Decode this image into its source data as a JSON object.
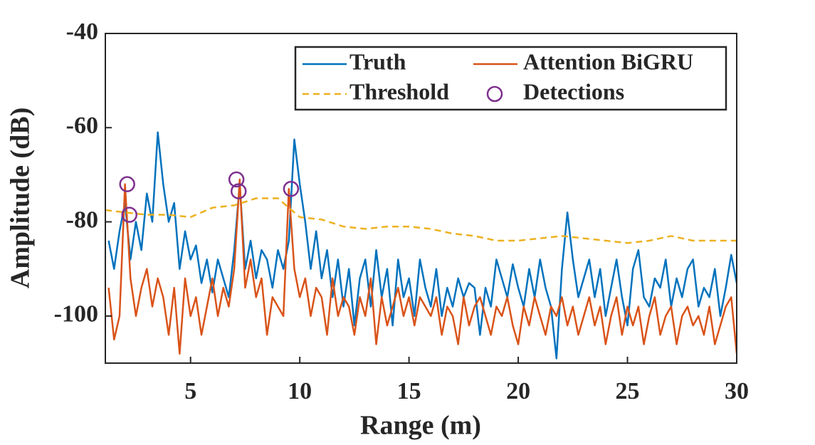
{
  "chart_data": {
    "type": "line",
    "xlabel": "Range (m)",
    "ylabel": "Amplitude (dB)",
    "xlim": [
      1.1,
      30
    ],
    "ylim": [
      -110,
      -40
    ],
    "xticks": [
      5,
      10,
      15,
      20,
      25,
      30
    ],
    "yticks": [
      -40,
      -60,
      -80,
      -100
    ],
    "legend": "upper right",
    "x": [
      1.25,
      1.5,
      1.75,
      2,
      2.25,
      2.5,
      2.75,
      3,
      3.25,
      3.5,
      3.75,
      4,
      4.25,
      4.5,
      4.75,
      5,
      5.25,
      5.5,
      5.75,
      6,
      6.25,
      6.5,
      6.75,
      7,
      7.25,
      7.5,
      7.75,
      8,
      8.25,
      8.5,
      8.75,
      9,
      9.25,
      9.5,
      9.75,
      10,
      10.25,
      10.5,
      10.75,
      11,
      11.25,
      11.5,
      11.75,
      12,
      12.25,
      12.5,
      12.75,
      13,
      13.25,
      13.5,
      13.75,
      14,
      14.25,
      14.5,
      14.75,
      15,
      15.25,
      15.5,
      15.75,
      16,
      16.25,
      16.5,
      16.75,
      17,
      17.25,
      17.5,
      17.75,
      18,
      18.25,
      18.5,
      18.75,
      19,
      19.25,
      19.5,
      19.75,
      20,
      20.25,
      20.5,
      20.75,
      21,
      21.25,
      21.5,
      21.75,
      22,
      22.25,
      22.5,
      22.75,
      23,
      23.25,
      23.5,
      23.75,
      24,
      24.25,
      24.5,
      24.75,
      25,
      25.25,
      25.5,
      25.75,
      26,
      26.25,
      26.5,
      26.75,
      27,
      27.25,
      27.5,
      27.75,
      28,
      28.25,
      28.5,
      28.75,
      29,
      29.25,
      29.5,
      29.75,
      30
    ],
    "series": [
      {
        "name": "Truth",
        "color": "#0072bd",
        "style": "solid",
        "values": [
          -84,
          -90,
          -82,
          -76,
          -88,
          -80,
          -86,
          -74,
          -80,
          -61,
          -72,
          -80,
          -76,
          -90,
          -82,
          -88,
          -85,
          -93,
          -88,
          -95,
          -88,
          -92,
          -96,
          -86,
          -72,
          -90,
          -84,
          -92,
          -86,
          -88,
          -94,
          -86,
          -90,
          -84,
          -62.5,
          -72,
          -80,
          -90,
          -82,
          -92,
          -86,
          -96,
          -88,
          -98,
          -90,
          -102,
          -92,
          -88,
          -98,
          -86,
          -96,
          -90,
          -102,
          -88,
          -96,
          -92,
          -100,
          -88,
          -94,
          -98,
          -90,
          -100,
          -94,
          -98,
          -92,
          -96,
          -93,
          -94,
          -104,
          -94,
          -98,
          -88,
          -92,
          -96,
          -89,
          -94,
          -98,
          -90,
          -96,
          -88,
          -94,
          -98,
          -109,
          -90,
          -78,
          -88,
          -96,
          -92,
          -88,
          -96,
          -90,
          -100,
          -94,
          -88,
          -96,
          -102,
          -90,
          -86,
          -96,
          -98,
          -92,
          -94,
          -88,
          -98,
          -92,
          -96,
          -90,
          -88,
          -98,
          -94,
          -96,
          -90,
          -100,
          -94,
          -87,
          -93
        ]
      },
      {
        "name": "Attention BiGRU",
        "color": "#d95319",
        "style": "solid",
        "values": [
          -94,
          -105,
          -100,
          -72,
          -92,
          -100,
          -94,
          -90,
          -98,
          -92,
          -96,
          -104,
          -94,
          -108,
          -92,
          -100,
          -96,
          -104,
          -98,
          -92,
          -100,
          -94,
          -98,
          -90,
          -71,
          -94,
          -88,
          -96,
          -92,
          -104,
          -96,
          -98,
          -100,
          -73,
          -90,
          -96,
          -92,
          -100,
          -94,
          -96,
          -104,
          -92,
          -100,
          -96,
          -98,
          -104,
          -96,
          -100,
          -92,
          -106,
          -96,
          -102,
          -98,
          -94,
          -100,
          -96,
          -102,
          -96,
          -98,
          -100,
          -96,
          -104,
          -98,
          -100,
          -106,
          -96,
          -102,
          -98,
          -96,
          -100,
          -104,
          -98,
          -100,
          -96,
          -102,
          -106,
          -98,
          -102,
          -96,
          -100,
          -104,
          -98,
          -100,
          -96,
          -102,
          -98,
          -104,
          -100,
          -96,
          -102,
          -98,
          -106,
          -100,
          -96,
          -104,
          -98,
          -102,
          -98,
          -106,
          -100,
          -96,
          -104,
          -100,
          -98,
          -106,
          -100,
          -98,
          -102,
          -100,
          -104,
          -98,
          -106,
          -102,
          -98,
          -96,
          -108
        ]
      },
      {
        "name": "Threshold",
        "color": "#edb120",
        "style": "dashed",
        "x": [
          1.1,
          2,
          3,
          4,
          5,
          6,
          7,
          8,
          9,
          10,
          11,
          12,
          13,
          14,
          15,
          16,
          17,
          18,
          19,
          20,
          21,
          22,
          23,
          24,
          25,
          26,
          27,
          28,
          29,
          30
        ],
        "values": [
          -77.5,
          -78,
          -78.5,
          -78.5,
          -79,
          -77,
          -76.5,
          -75,
          -75,
          -79,
          -79.5,
          -81,
          -81.5,
          -81,
          -81,
          -81.5,
          -82.5,
          -83,
          -84,
          -84,
          -83.5,
          -83,
          -83.5,
          -84,
          -84.5,
          -84,
          -83,
          -84,
          -84,
          -84
        ]
      },
      {
        "name": "Detections",
        "color": "#7e2f8e",
        "style": "markers",
        "x": [
          2.1,
          2.2,
          7.1,
          7.2,
          9.6
        ],
        "values": [
          -72,
          -78.5,
          -71,
          -73.5,
          -73
        ]
      }
    ]
  }
}
